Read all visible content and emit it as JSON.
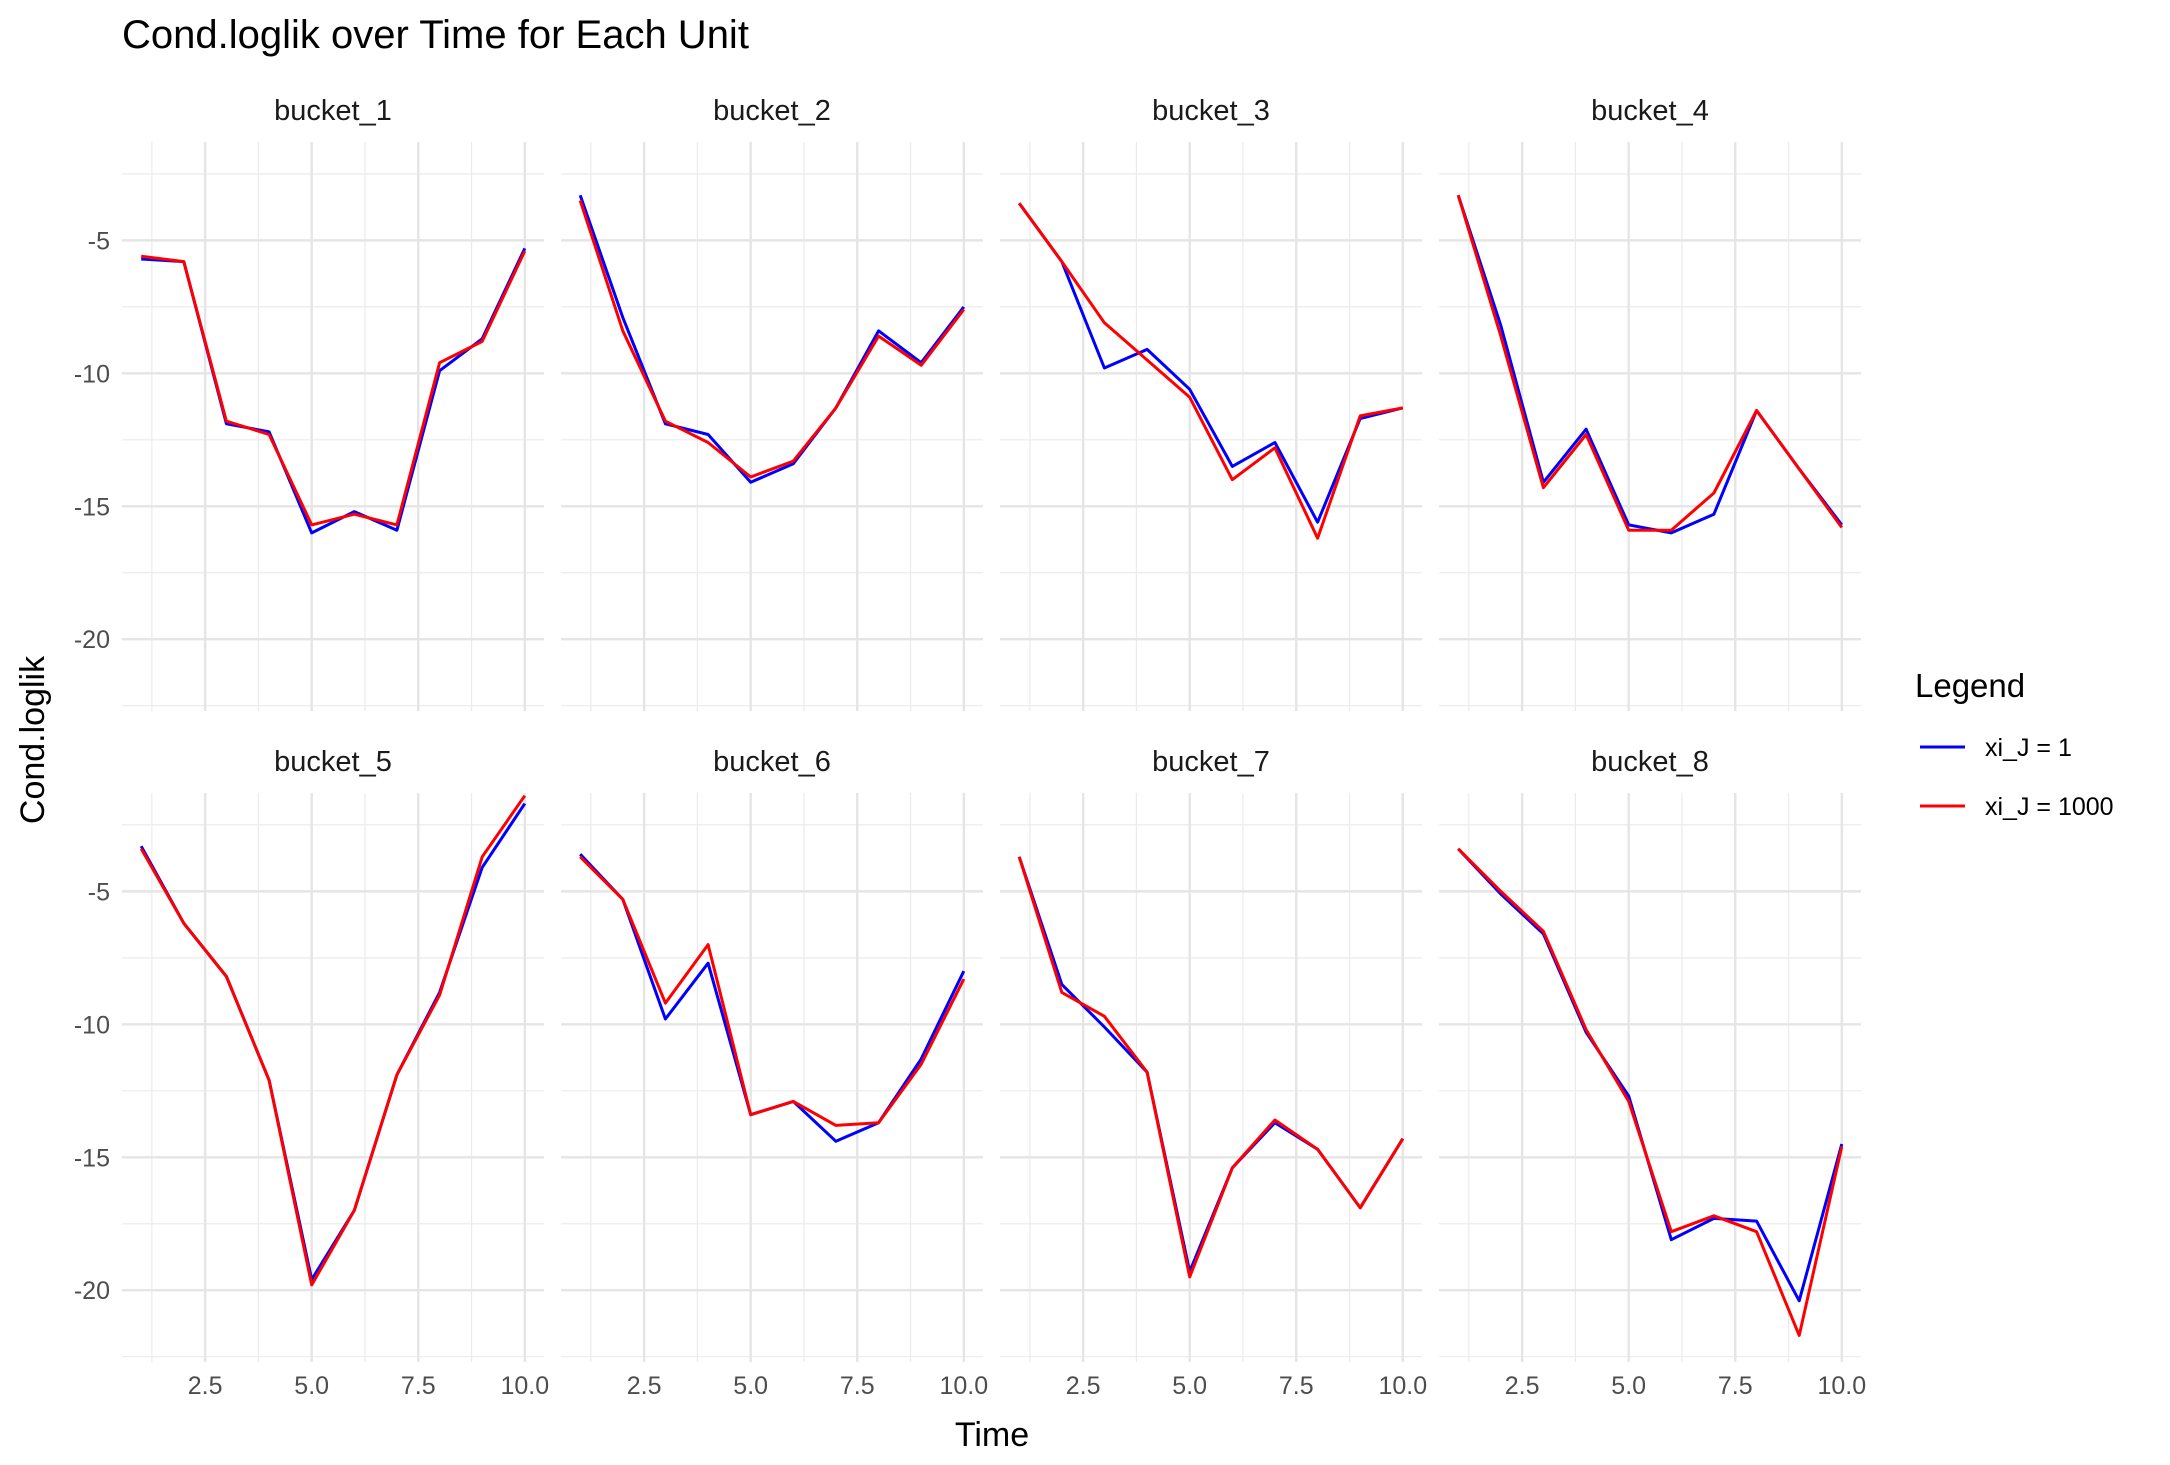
{
  "chart_data": {
    "type": "line",
    "title": "Cond.loglik over Time for Each Unit",
    "xlabel": "Time",
    "ylabel": "Cond.loglik",
    "xlim": [
      0.55,
      10.45
    ],
    "ylim": [
      -22.7,
      -1.3
    ],
    "x_ticks": [
      2.5,
      5.0,
      7.5,
      10.0
    ],
    "x_tick_labels": [
      "2.5",
      "5.0",
      "7.5",
      "10.0"
    ],
    "y_ticks": [
      -5,
      -10,
      -15,
      -20
    ],
    "y_tick_labels": [
      "-5",
      "-10",
      "-15",
      "-20"
    ],
    "grid": true,
    "legend_title": "Legend",
    "legend_position": "right",
    "colors": {
      "xi_J = 1": "#0000ff",
      "xi_J = 1000": "#ff0000"
    },
    "x": [
      1,
      2,
      3,
      4,
      5,
      6,
      7,
      8,
      9,
      10
    ],
    "facets": [
      {
        "label": "bucket_1",
        "series": [
          {
            "name": "xi_J = 1",
            "values": [
              -5.7,
              -5.8,
              -11.9,
              -12.2,
              -16.0,
              -15.2,
              -15.9,
              -9.9,
              -8.7,
              -5.3
            ]
          },
          {
            "name": "xi_J = 1000",
            "values": [
              -5.6,
              -5.8,
              -11.8,
              -12.3,
              -15.7,
              -15.3,
              -15.7,
              -9.6,
              -8.8,
              -5.4
            ]
          }
        ]
      },
      {
        "label": "bucket_2",
        "series": [
          {
            "name": "xi_J = 1",
            "values": [
              -3.3,
              -7.9,
              -11.9,
              -12.3,
              -14.1,
              -13.4,
              -11.3,
              -8.4,
              -9.6,
              -7.5
            ]
          },
          {
            "name": "xi_J = 1000",
            "values": [
              -3.5,
              -8.4,
              -11.8,
              -12.6,
              -13.9,
              -13.3,
              -11.3,
              -8.6,
              -9.7,
              -7.6
            ]
          }
        ]
      },
      {
        "label": "bucket_3",
        "series": [
          {
            "name": "xi_J = 1",
            "values": [
              -3.6,
              -5.8,
              -9.8,
              -9.1,
              -10.6,
              -13.5,
              -12.6,
              -15.6,
              -11.7,
              -11.3
            ]
          },
          {
            "name": "xi_J = 1000",
            "values": [
              -3.6,
              -5.8,
              -8.1,
              -9.5,
              -10.9,
              -14.0,
              -12.8,
              -16.2,
              -11.6,
              -11.3
            ]
          }
        ]
      },
      {
        "label": "bucket_4",
        "series": [
          {
            "name": "xi_J = 1",
            "values": [
              -3.3,
              -8.2,
              -14.1,
              -12.1,
              -15.7,
              -16.0,
              -15.3,
              -11.4,
              -13.6,
              -15.7
            ]
          },
          {
            "name": "xi_J = 1000",
            "values": [
              -3.3,
              -8.6,
              -14.3,
              -12.3,
              -15.9,
              -15.9,
              -14.5,
              -11.4,
              -13.6,
              -15.8
            ]
          }
        ]
      },
      {
        "label": "bucket_5",
        "series": [
          {
            "name": "xi_J = 1",
            "values": [
              -3.3,
              -6.2,
              -8.2,
              -12.1,
              -19.6,
              -17.0,
              -11.9,
              -8.8,
              -4.1,
              -1.7
            ]
          },
          {
            "name": "xi_J = 1000",
            "values": [
              -3.4,
              -6.2,
              -8.2,
              -12.1,
              -19.8,
              -17.0,
              -11.9,
              -8.9,
              -3.7,
              -1.4
            ]
          }
        ]
      },
      {
        "label": "bucket_6",
        "series": [
          {
            "name": "xi_J = 1",
            "values": [
              -3.6,
              -5.3,
              -9.8,
              -7.7,
              -13.4,
              -12.9,
              -14.4,
              -13.7,
              -11.3,
              -8.0
            ]
          },
          {
            "name": "xi_J = 1000",
            "values": [
              -3.7,
              -5.3,
              -9.2,
              -7.0,
              -13.4,
              -12.9,
              -13.8,
              -13.7,
              -11.5,
              -8.3
            ]
          }
        ]
      },
      {
        "label": "bucket_7",
        "series": [
          {
            "name": "xi_J = 1",
            "values": [
              -3.7,
              -8.5,
              -10.1,
              -11.8,
              -19.3,
              -15.4,
              -13.7,
              -14.7,
              -16.9,
              -14.3
            ]
          },
          {
            "name": "xi_J = 1000",
            "values": [
              -3.7,
              -8.8,
              -9.7,
              -11.8,
              -19.5,
              -15.4,
              -13.6,
              -14.7,
              -16.9,
              -14.3
            ]
          }
        ]
      },
      {
        "label": "bucket_8",
        "series": [
          {
            "name": "xi_J = 1",
            "values": [
              -3.4,
              -5.1,
              -6.6,
              -10.3,
              -12.7,
              -18.1,
              -17.3,
              -17.4,
              -20.4,
              -14.5
            ]
          },
          {
            "name": "xi_J = 1000",
            "values": [
              -3.4,
              -5.0,
              -6.5,
              -10.2,
              -12.9,
              -17.8,
              -17.2,
              -17.8,
              -21.7,
              -14.6
            ]
          }
        ]
      }
    ]
  }
}
